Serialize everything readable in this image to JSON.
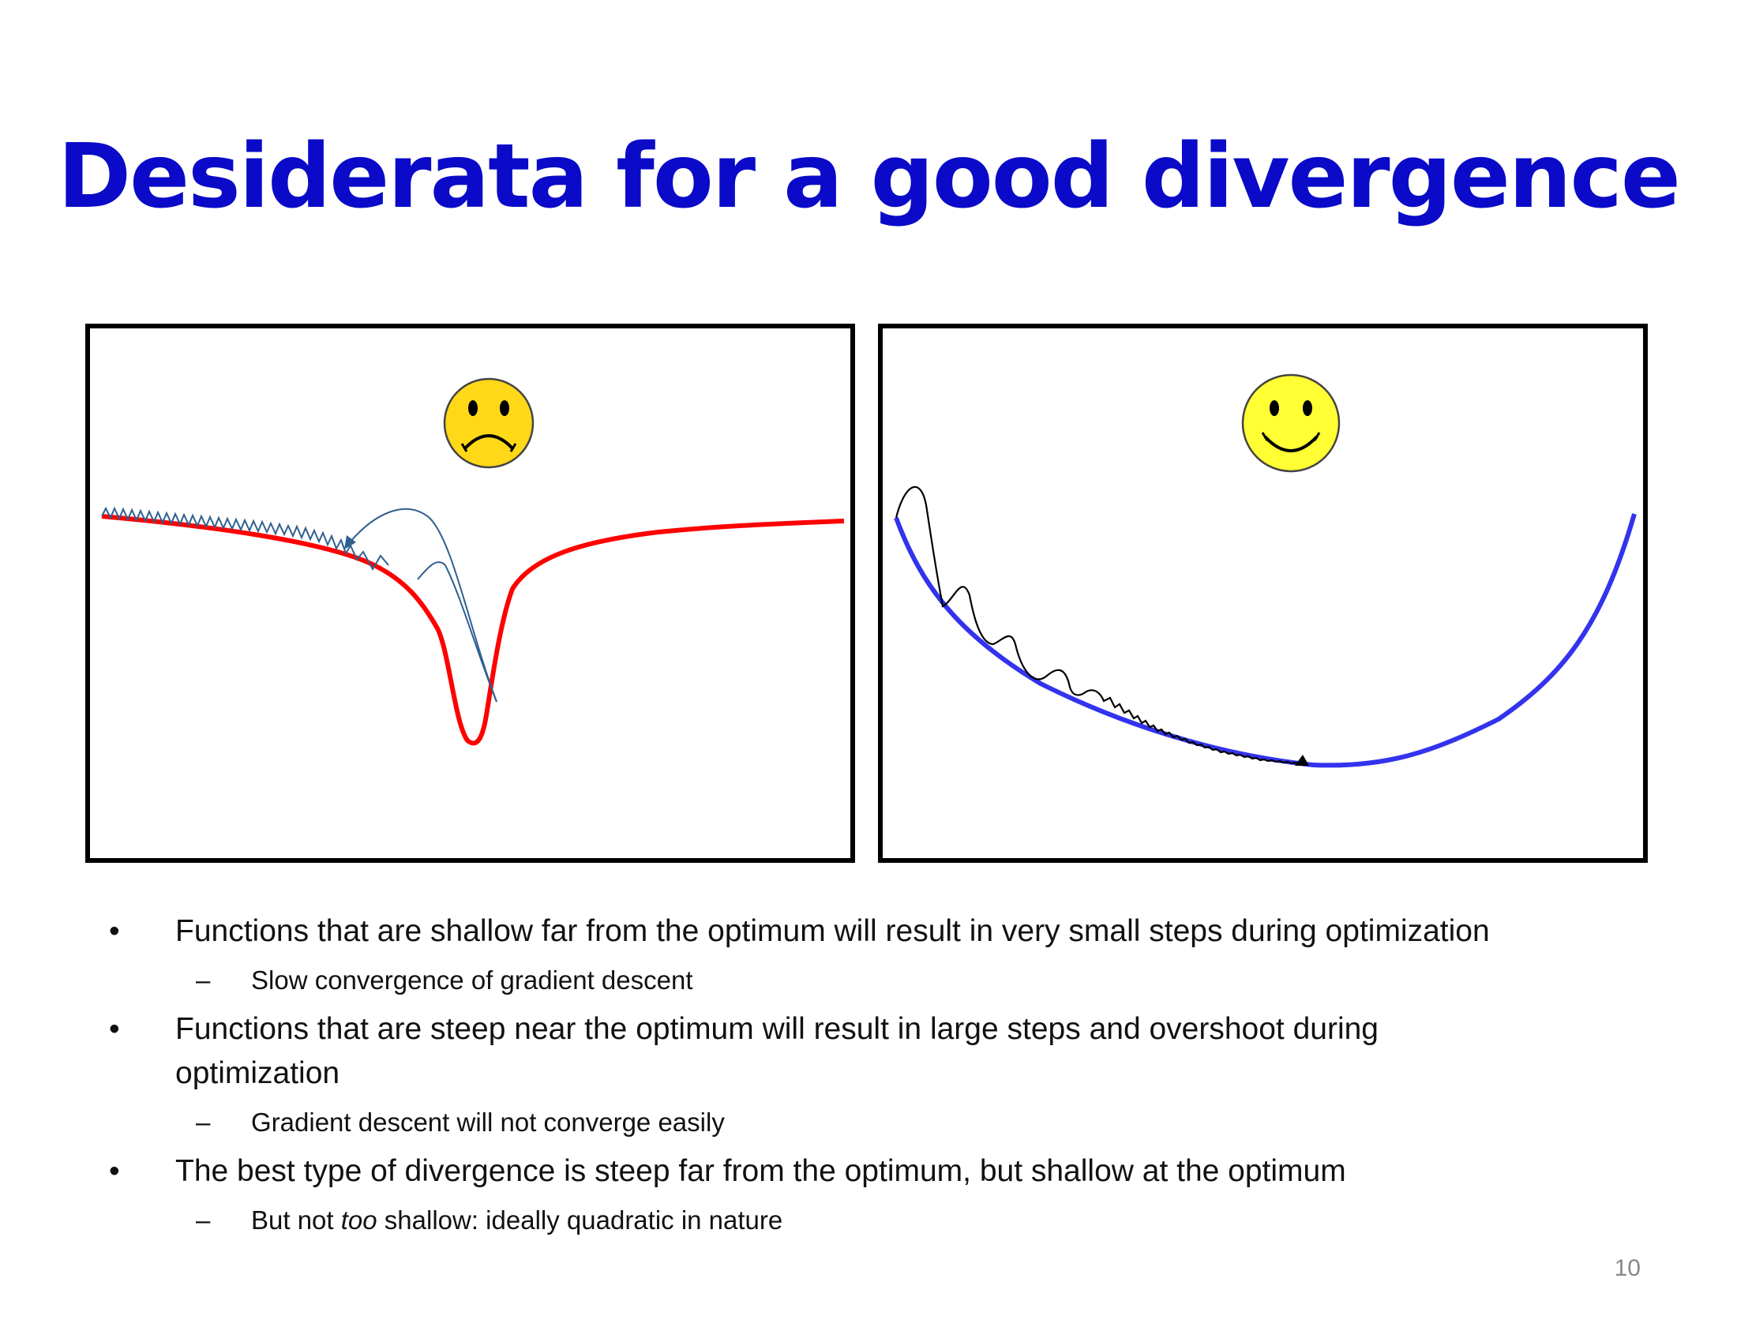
{
  "slide": {
    "title": "Desiderata for a good divergence",
    "page_number": "10"
  },
  "panels": {
    "left": {
      "face": "sad-face-icon",
      "curve_color": "#ff0000",
      "path_color": "#2f5f8f"
    },
    "right": {
      "face": "happy-face-icon",
      "curve_color": "#3333ee",
      "path_color": "#000000"
    }
  },
  "bullets": [
    {
      "marker": "•",
      "text": "Functions that are shallow far from the optimum will result in very small steps during optimization",
      "sub": [
        {
          "marker": "–",
          "text": "Slow convergence of gradient descent"
        }
      ]
    },
    {
      "marker": "•",
      "text_line1": "Functions that are steep near the optimum will result in large steps and overshoot during",
      "text_line2": "optimization",
      "sub": [
        {
          "marker": "–",
          "text": "Gradient descent will not converge easily"
        }
      ]
    },
    {
      "marker": "•",
      "text": "The best type of divergence is steep far from the optimum, but shallow at the optimum",
      "sub": [
        {
          "marker": "–",
          "text_before": "But not ",
          "text_em": "too",
          "text_after": " shallow: ideally quadratic in nature"
        }
      ]
    }
  ]
}
